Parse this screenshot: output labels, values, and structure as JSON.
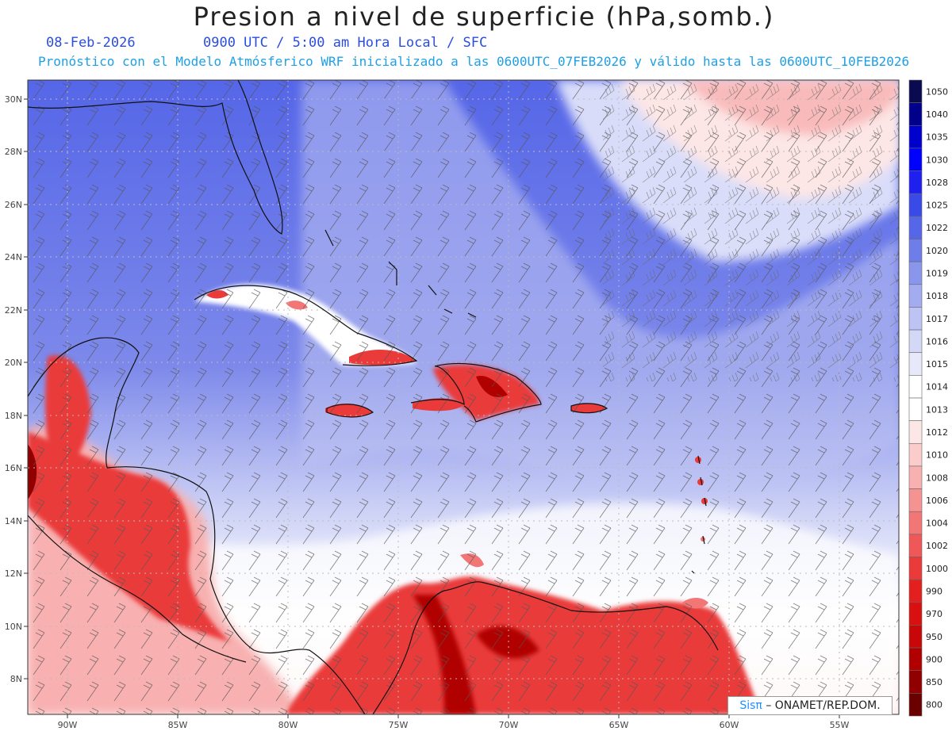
{
  "title": "Presion a nivel de superficie (hPa,somb.)",
  "date": "08-Feb-2026",
  "time_info": "0900 UTC / 5:00 am Hora Local / SFC",
  "model_info": "Pronóstico con el Modelo Atmósferico WRF inicializado a las 0600UTC_07FEB2026 y válido hasta las  0600UTC_10FEB2026",
  "credit": {
    "brand": "Sisπ",
    "text": "– ONAMET/REP.DOM."
  },
  "lat_labels": [
    "30N",
    "28N",
    "26N",
    "24N",
    "22N",
    "20N",
    "18N",
    "16N",
    "14N",
    "12N",
    "10N",
    "8N"
  ],
  "lon_labels": [
    "90W",
    "85W",
    "80W",
    "75W",
    "70W",
    "65W",
    "60W",
    "55W"
  ],
  "colorbar": [
    {
      "label": "1050",
      "color": "#0a0a50"
    },
    {
      "label": "1040",
      "color": "#00008b"
    },
    {
      "label": "1035",
      "color": "#0000cd"
    },
    {
      "label": "1030",
      "color": "#0000ff"
    },
    {
      "label": "1028",
      "color": "#2020ee"
    },
    {
      "label": "1025",
      "color": "#3a4ae6"
    },
    {
      "label": "1022",
      "color": "#5566e8"
    },
    {
      "label": "1020",
      "color": "#6e7de8"
    },
    {
      "label": "1019",
      "color": "#8a96ec"
    },
    {
      "label": "1018",
      "color": "#a3acf0"
    },
    {
      "label": "1017",
      "color": "#bdc3f3"
    },
    {
      "label": "1016",
      "color": "#d4d8f7"
    },
    {
      "label": "1015",
      "color": "#e7e9fb"
    },
    {
      "label": "1014",
      "color": "#ffffff"
    },
    {
      "label": "1013",
      "color": "#ffffff"
    },
    {
      "label": "1012",
      "color": "#fde6e6"
    },
    {
      "label": "1010",
      "color": "#fbcccc"
    },
    {
      "label": "1008",
      "color": "#f8b0b0"
    },
    {
      "label": "1006",
      "color": "#f59393"
    },
    {
      "label": "1004",
      "color": "#f27676"
    },
    {
      "label": "1002",
      "color": "#ef5858"
    },
    {
      "label": "1000",
      "color": "#ea3a3a"
    },
    {
      "label": "990",
      "color": "#e41f1f"
    },
    {
      "label": "970",
      "color": "#d81010"
    },
    {
      "label": "950",
      "color": "#c80808"
    },
    {
      "label": "900",
      "color": "#b00000"
    },
    {
      "label": "850",
      "color": "#900000"
    },
    {
      "label": "800",
      "color": "#6a0000"
    }
  ]
}
